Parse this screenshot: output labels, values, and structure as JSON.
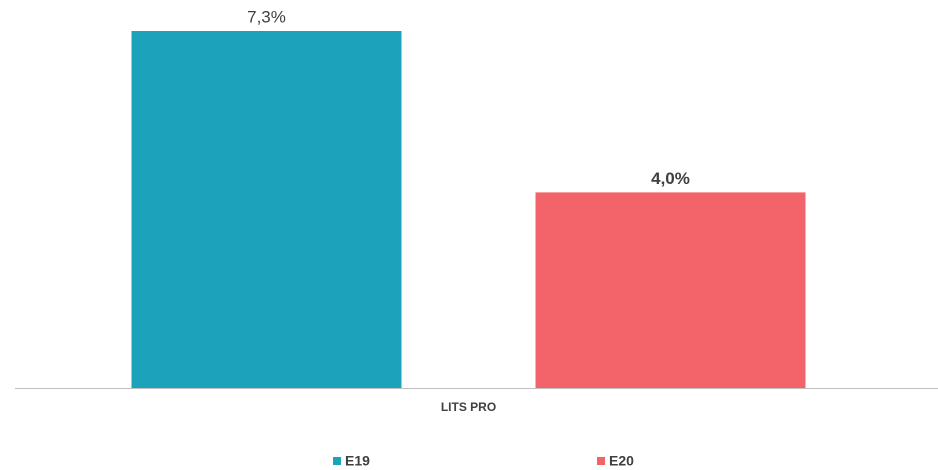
{
  "chart_data": {
    "type": "bar",
    "categories": [
      "LITS PRO"
    ],
    "series": [
      {
        "name": "E19",
        "color": "#1ca2bb",
        "values": [
          7.3
        ],
        "value_labels": [
          "7,3%"
        ]
      },
      {
        "name": "E20",
        "color": "#f2646a",
        "values": [
          4.0
        ],
        "value_labels": [
          "4,0%"
        ]
      }
    ]
  }
}
